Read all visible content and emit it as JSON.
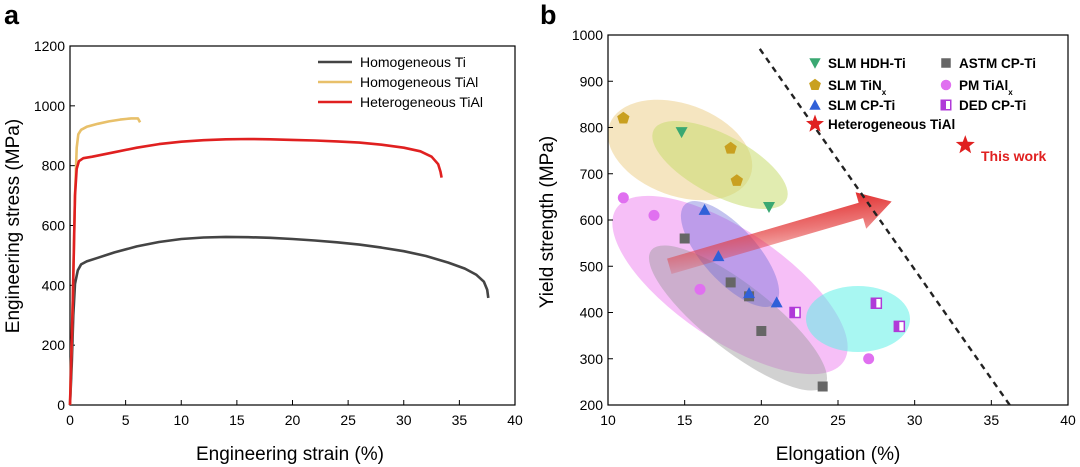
{
  "chart_data": [
    {
      "panel": "a",
      "type": "line",
      "xlabel": "Engineering strain (%)",
      "ylabel": "Engineering stress (MPa)",
      "xlim": [
        0,
        40
      ],
      "ylim": [
        0,
        1200
      ],
      "xticks": [
        "0",
        "5",
        "10",
        "15",
        "20",
        "25",
        "30",
        "35",
        "40"
      ],
      "yticks": [
        "0",
        "200",
        "400",
        "600",
        "800",
        "1000",
        "1200"
      ],
      "legend_position": "top-right",
      "series": [
        {
          "name": "Homogeneous Ti",
          "color": "#444444",
          "points": [
            [
              0,
              0
            ],
            [
              0.15,
              130
            ],
            [
              0.3,
              300
            ],
            [
              0.45,
              405
            ],
            [
              0.7,
              450
            ],
            [
              1.0,
              470
            ],
            [
              1.5,
              480
            ],
            [
              2.5,
              492
            ],
            [
              4,
              510
            ],
            [
              6,
              530
            ],
            [
              8,
              545
            ],
            [
              10,
              555
            ],
            [
              12,
              560
            ],
            [
              14,
              562
            ],
            [
              16,
              561
            ],
            [
              18,
              559
            ],
            [
              20,
              555
            ],
            [
              22,
              550
            ],
            [
              24,
              544
            ],
            [
              26,
              536
            ],
            [
              28,
              526
            ],
            [
              30,
              514
            ],
            [
              32,
              498
            ],
            [
              34,
              476
            ],
            [
              35.5,
              456
            ],
            [
              36.5,
              436
            ],
            [
              37.2,
              412
            ],
            [
              37.5,
              385
            ],
            [
              37.6,
              358
            ]
          ]
        },
        {
          "name": "Homogeneous TiAl",
          "color": "#e8c06a",
          "points": [
            [
              0,
              0
            ],
            [
              0.25,
              350
            ],
            [
              0.45,
              700
            ],
            [
              0.6,
              860
            ],
            [
              0.75,
              905
            ],
            [
              1.0,
              920
            ],
            [
              1.5,
              930
            ],
            [
              2.5,
              940
            ],
            [
              3.5,
              948
            ],
            [
              4.5,
              954
            ],
            [
              5.5,
              958
            ],
            [
              6.1,
              958
            ],
            [
              6.3,
              945
            ]
          ]
        },
        {
          "name": "Heterogeneous TiAl",
          "color": "#e02020",
          "points": [
            [
              0,
              0
            ],
            [
              0.25,
              350
            ],
            [
              0.45,
              700
            ],
            [
              0.6,
              790
            ],
            [
              0.8,
              815
            ],
            [
              1.2,
              825
            ],
            [
              2,
              830
            ],
            [
              4,
              845
            ],
            [
              6,
              860
            ],
            [
              8,
              872
            ],
            [
              10,
              880
            ],
            [
              12,
              885
            ],
            [
              14,
              888
            ],
            [
              16,
              889
            ],
            [
              18,
              888
            ],
            [
              20,
              886
            ],
            [
              22,
              884
            ],
            [
              24,
              881
            ],
            [
              26,
              877
            ],
            [
              28,
              870
            ],
            [
              30,
              860
            ],
            [
              31.5,
              848
            ],
            [
              32.5,
              830
            ],
            [
              33.1,
              805
            ],
            [
              33.3,
              780
            ],
            [
              33.4,
              760
            ]
          ]
        }
      ]
    },
    {
      "panel": "b",
      "type": "scatter",
      "xlabel": "Elongation (%)",
      "ylabel": "Yield strength (MPa)",
      "xlim": [
        10,
        40
      ],
      "ylim": [
        200,
        1000
      ],
      "xticks": [
        "10",
        "15",
        "20",
        "25",
        "30",
        "35",
        "40"
      ],
      "yticks": [
        "200",
        "300",
        "400",
        "500",
        "600",
        "700",
        "800",
        "900",
        "1000"
      ],
      "legend_position": "top-right",
      "annotation": "This work",
      "trend_line": [
        [
          19.9,
          970
        ],
        [
          36.2,
          200
        ]
      ],
      "arrow": {
        "from": [
          14,
          500
        ],
        "to": [
          28.5,
          640
        ]
      },
      "series": [
        {
          "name": "SLM HDH-Ti",
          "label": "SLM HDH-Ti",
          "marker": "triangle-down",
          "color": "#3aa872",
          "points": [
            [
              14.8,
              790
            ],
            [
              20.5,
              628
            ]
          ]
        },
        {
          "name": "ASTM CP-Ti",
          "label": "ASTM  CP-Ti",
          "marker": "square",
          "color": "#666666",
          "points": [
            [
              15,
              560
            ],
            [
              18,
              465
            ],
            [
              19.2,
              435
            ],
            [
              20,
              360
            ],
            [
              24,
              240
            ]
          ]
        },
        {
          "name": "SLM TiNx",
          "label": "SLM TiN",
          "label_sub": "x",
          "marker": "pentagon",
          "color": "#c9a020",
          "points": [
            [
              11,
              820
            ],
            [
              18,
              755
            ],
            [
              18.4,
              685
            ]
          ]
        },
        {
          "name": "PM TiAlx",
          "label": "PM TiAl",
          "label_sub": "x",
          "marker": "circle",
          "color": "#e070f0",
          "points": [
            [
              11,
              648
            ],
            [
              13,
              610
            ],
            [
              16,
              450
            ],
            [
              27,
              300
            ]
          ]
        },
        {
          "name": "SLM CP-Ti",
          "label": "SLM CP-Ti",
          "marker": "triangle-up",
          "color": "#3060d8",
          "points": [
            [
              16.3,
              622
            ],
            [
              17.2,
              522
            ],
            [
              19.2,
              442
            ],
            [
              21,
              422
            ]
          ]
        },
        {
          "name": "DED CP-Ti",
          "label": "DED CP-Ti",
          "marker": "half-square",
          "color": "#b03ad8",
          "points": [
            [
              22.2,
              400
            ],
            [
              27.5,
              420
            ],
            [
              29,
              370
            ]
          ]
        },
        {
          "name": "Heterogeneous TiAl",
          "label": "Heterogeneous TiAl",
          "marker": "star",
          "color": "#e02020",
          "points": [
            [
              33.3,
              762
            ]
          ]
        }
      ],
      "regions": [
        {
          "name": "SLM TiNx region",
          "color": "#e8c16a",
          "opacity": 0.42
        },
        {
          "name": "SLM HDH-Ti region",
          "color": "#c8dd70",
          "opacity": 0.55
        },
        {
          "name": "PM TiAlx region",
          "color": "#ee80f0",
          "opacity": 0.5
        },
        {
          "name": "ASTM CP-Ti region",
          "color": "#9a9a9a",
          "opacity": 0.45
        },
        {
          "name": "SLM CP-Ti region",
          "color": "#6a6ad8",
          "opacity": 0.4
        },
        {
          "name": "DED CP-Ti region",
          "color": "#60f0e8",
          "opacity": 0.55
        }
      ]
    }
  ]
}
